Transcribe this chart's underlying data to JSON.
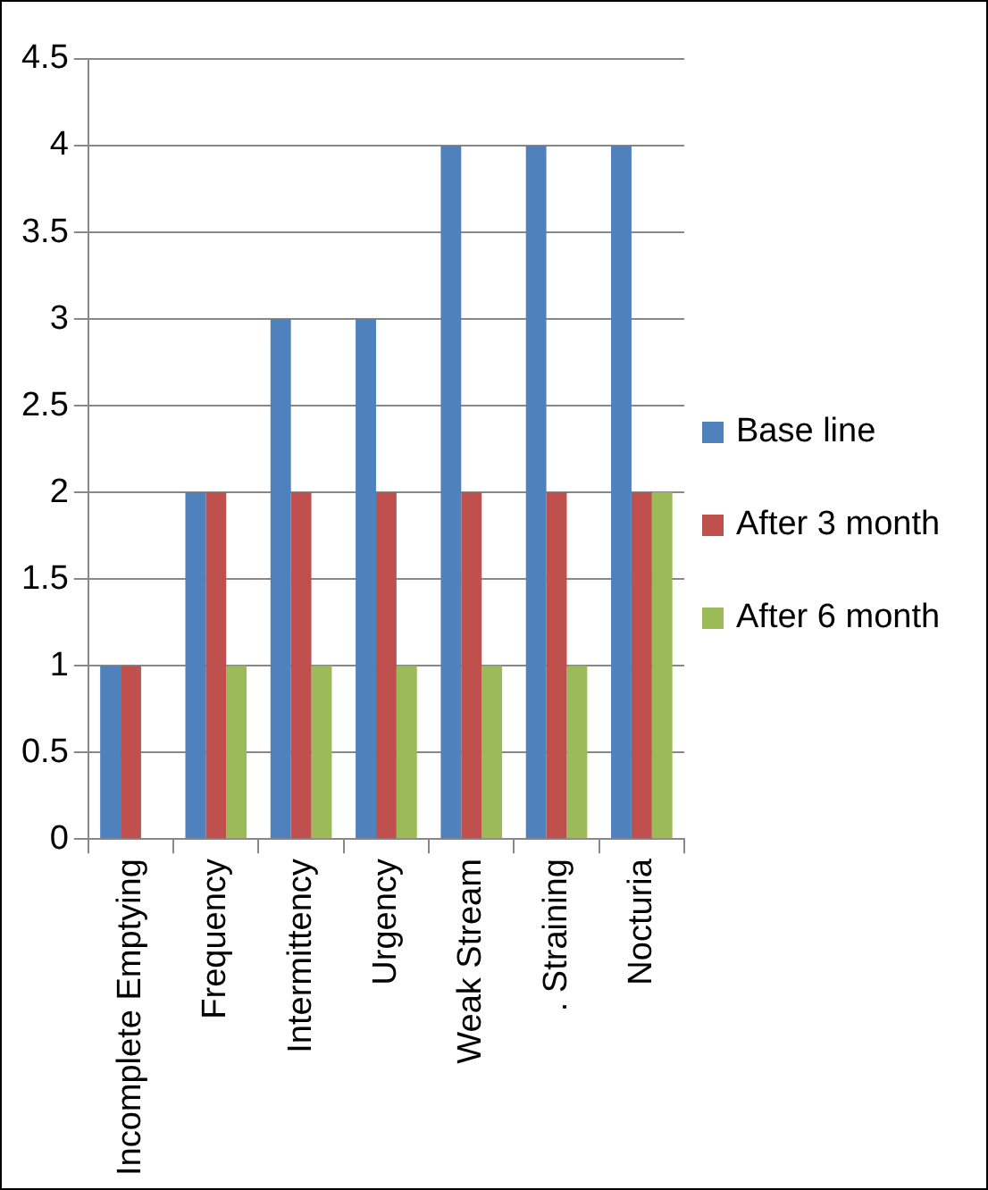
{
  "chart_data": {
    "type": "bar",
    "categories": [
      "Incomplete Emptying",
      "Frequency",
      "Intermittency",
      "Urgency",
      "Weak Stream",
      ". Straining",
      "Nocturia"
    ],
    "series": [
      {
        "name": "Base line",
        "color": "#4f81bd",
        "values": [
          1,
          2,
          3,
          3,
          4,
          4,
          4
        ]
      },
      {
        "name": "After 3 month",
        "color": "#c0504d",
        "values": [
          1,
          2,
          2,
          2,
          2,
          2,
          2
        ]
      },
      {
        "name": "After 6 month",
        "color": "#9bbb59",
        "values": [
          0,
          1,
          1,
          1,
          1,
          1,
          2
        ]
      }
    ],
    "ylim": [
      0,
      4.5
    ],
    "yticks": [
      0,
      0.5,
      1,
      1.5,
      2,
      2.5,
      3,
      3.5,
      4,
      4.5
    ],
    "grid": "y",
    "legend": "right"
  }
}
